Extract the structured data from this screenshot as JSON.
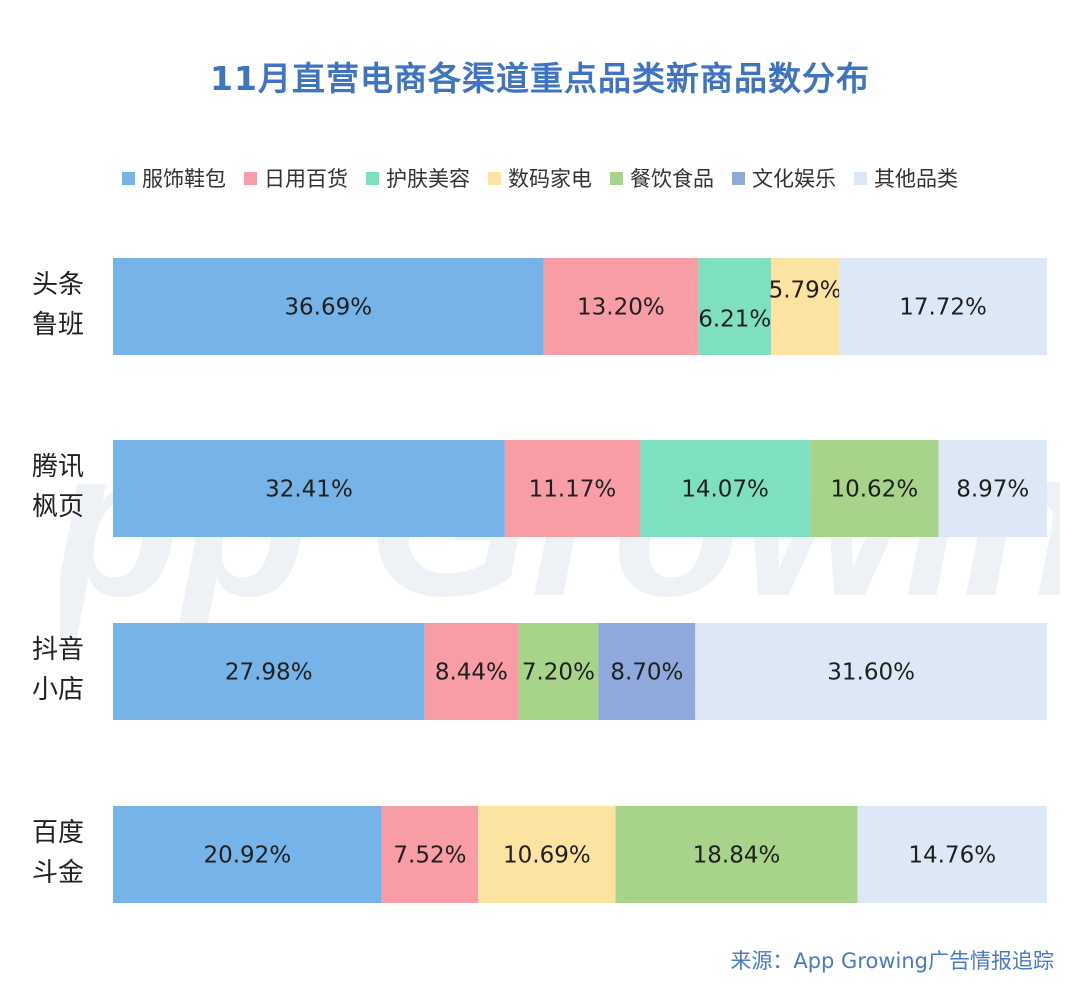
{
  "chart_data": {
    "type": "bar",
    "orientation": "horizontal-stacked",
    "title": "11月直营电商各渠道重点品类新商品数分布",
    "unit": "%",
    "categories": [
      [
        "头条",
        "鲁班"
      ],
      [
        "腾讯",
        "枫页"
      ],
      [
        "抖音",
        "小店"
      ],
      [
        "百度",
        "斗金"
      ]
    ],
    "series": [
      {
        "name": "服饰鞋包",
        "color": "#76b3e8",
        "values": [
          36.69,
          32.41,
          27.98,
          20.92
        ]
      },
      {
        "name": "日用百货",
        "color": "#f89ca6",
        "values": [
          13.2,
          11.17,
          8.44,
          7.52
        ]
      },
      {
        "name": "护肤美容",
        "color": "#7fe0c1",
        "values": [
          6.21,
          14.07,
          null,
          null
        ]
      },
      {
        "name": "数码家电",
        "color": "#fde3a1",
        "values": [
          5.79,
          null,
          null,
          10.69
        ]
      },
      {
        "name": "餐饮食品",
        "color": "#a7d48a",
        "values": [
          null,
          10.62,
          7.2,
          18.84
        ]
      },
      {
        "name": "文化娱乐",
        "color": "#8fa9dc",
        "values": [
          null,
          null,
          8.7,
          null
        ]
      },
      {
        "name": "其他品类",
        "color": "#dce8f5",
        "values": [
          17.72,
          8.97,
          31.6,
          14.76
        ]
      }
    ],
    "value_labels": [
      [
        "36.69%",
        "13.20%",
        "6.21%",
        "5.79%",
        "17.72%"
      ],
      [
        "32.41%",
        "11.17%",
        "14.07%",
        "10.62%",
        "8.97%"
      ],
      [
        "27.98%",
        "8.44%",
        "7.20%",
        "8.70%",
        "31.60%"
      ],
      [
        "20.92%",
        "7.52%",
        "10.69%",
        "18.84%",
        "14.76%"
      ]
    ],
    "legend_position": "top",
    "grid": false
  },
  "watermark": "App Growing",
  "source": "来源：App Growing广告情报追踪"
}
